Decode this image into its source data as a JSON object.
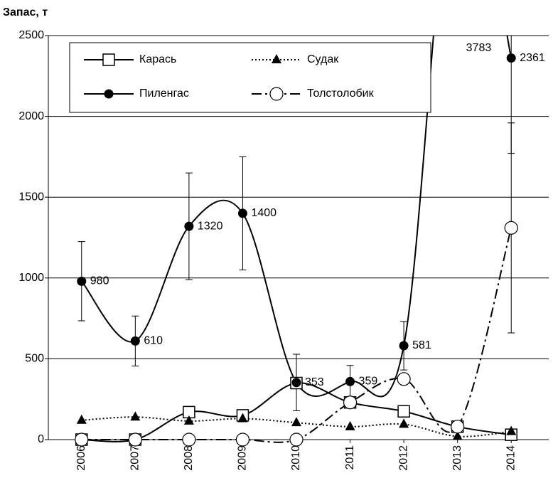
{
  "chart_data": {
    "type": "line",
    "y_label": "Запас, т",
    "categories": [
      "2006",
      "2007",
      "2008",
      "2009",
      "2010",
      "2011",
      "2012",
      "2013",
      "2014"
    ],
    "ylim": [
      0,
      2500
    ],
    "yticks": [
      0,
      500,
      1000,
      1500,
      2000,
      2500
    ],
    "grid": true,
    "legend": "top-left",
    "series": [
      {
        "name": "Карась",
        "color": "#000000",
        "marker": "square",
        "dash": "solid",
        "values": [
          0,
          0,
          170,
          150,
          350,
          230,
          175,
          80,
          30
        ]
      },
      {
        "name": "Судак",
        "color": "#000000",
        "marker": "triangle",
        "dash": "dotted",
        "values": [
          120,
          140,
          115,
          130,
          105,
          80,
          95,
          20,
          50
        ]
      },
      {
        "name": "Пиленгас",
        "color": "#000000",
        "marker": "circle",
        "dash": "solid",
        "values": [
          980,
          610,
          1320,
          1400,
          353,
          359,
          581,
          3783,
          2361
        ],
        "errors": [
          245,
          155,
          330,
          350,
          175,
          100,
          150,
          null,
          590
        ],
        "labels": true
      },
      {
        "name": "Толстолобик",
        "color": "#000000",
        "marker": "open-circle",
        "dash": "dash-dot",
        "values": [
          0,
          0,
          0,
          0,
          0,
          230,
          375,
          80,
          1310
        ],
        "errors": [
          null,
          null,
          null,
          null,
          null,
          null,
          null,
          null,
          650
        ]
      }
    ]
  }
}
